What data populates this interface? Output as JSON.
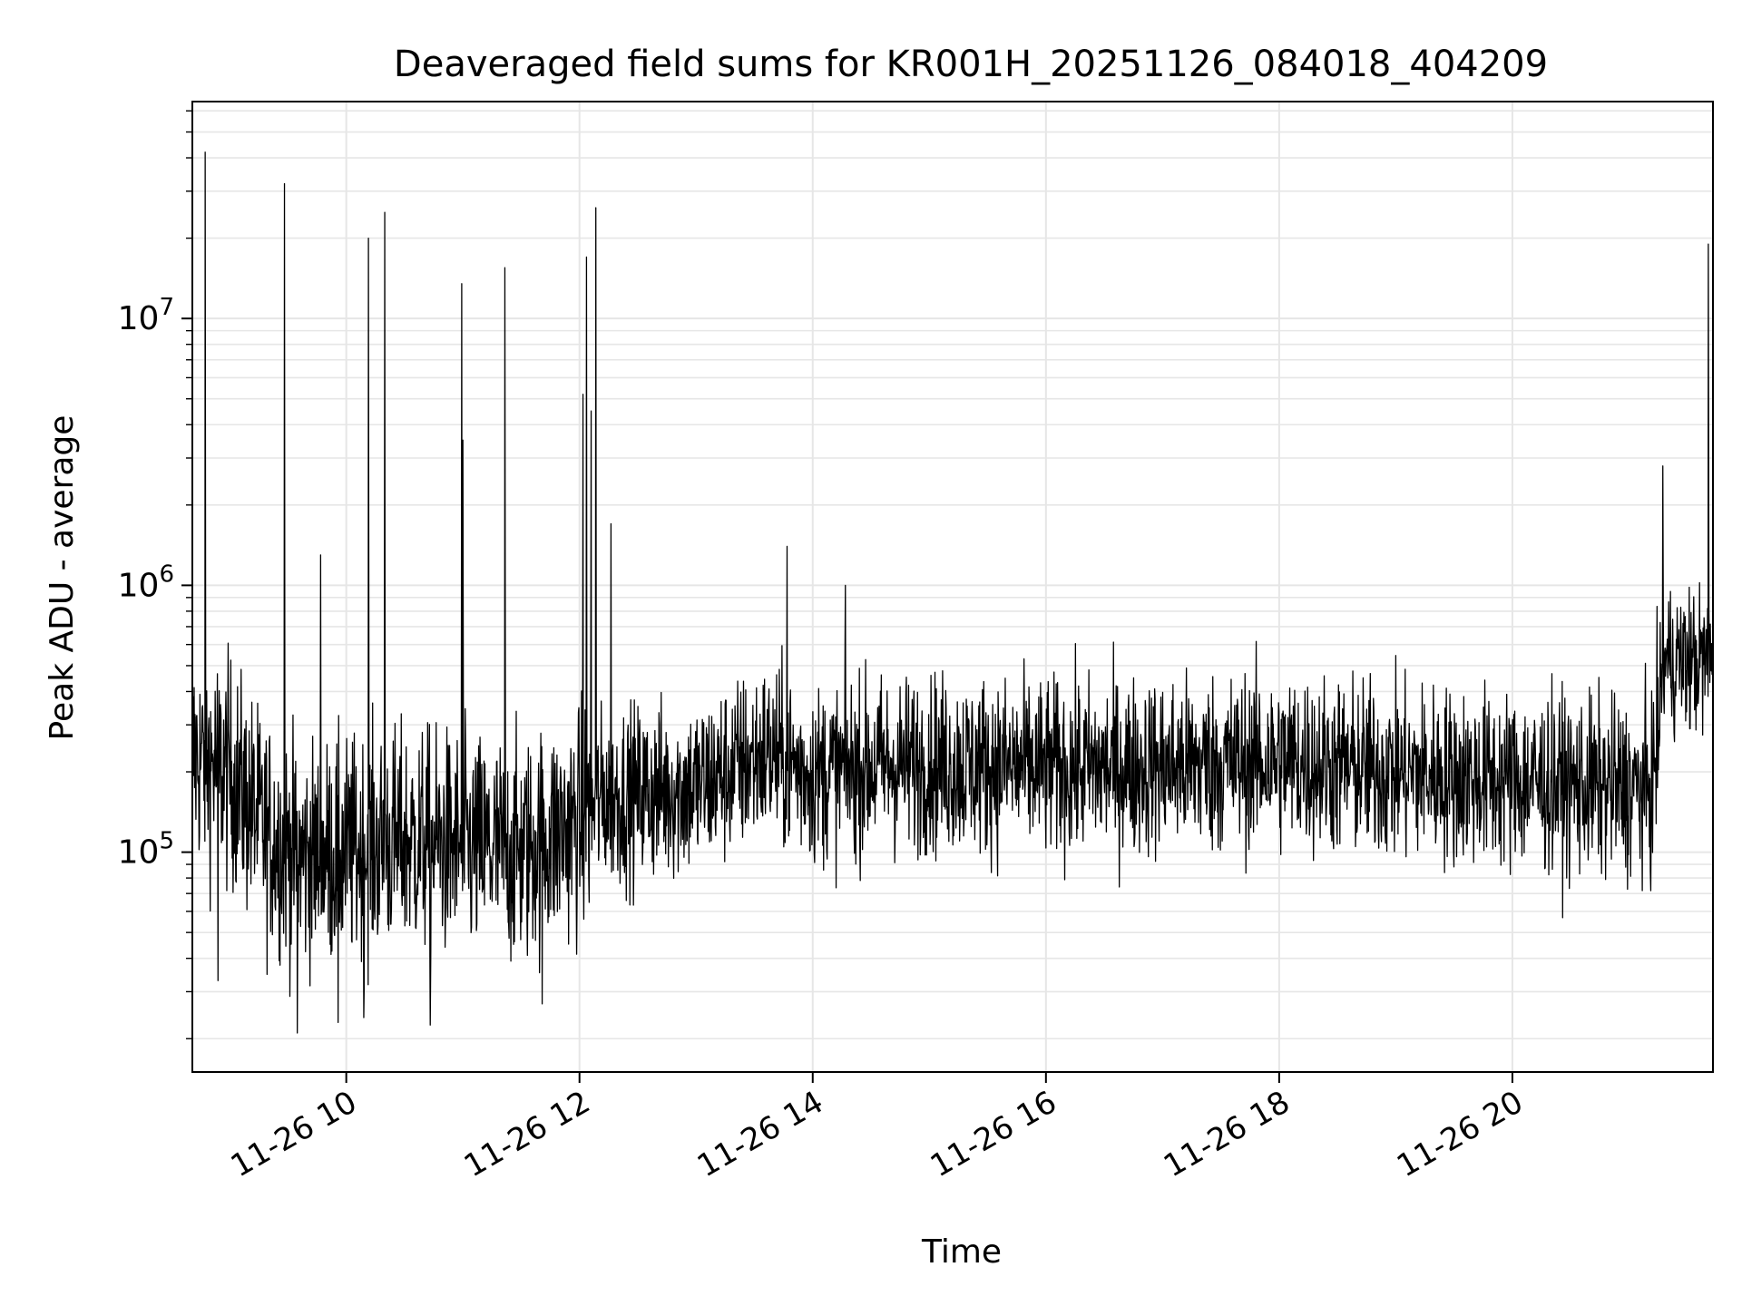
{
  "chart_data": {
    "type": "line",
    "title": "Deaveraged field sums for KR001H_20251126_084018_404209",
    "xlabel": "Time",
    "ylabel": "Peak ADU - average",
    "x_ticks": [
      "11-26 10",
      "11-26 12",
      "11-26 14",
      "11-26 16",
      "11-26 18",
      "11-26 20"
    ],
    "x_tick_hours": [
      10,
      12,
      14,
      16,
      18,
      20
    ],
    "xlim_hours": [
      8.68,
      21.72
    ],
    "yscale": "log",
    "ylim": [
      15000,
      65000000
    ],
    "y_ticks": [
      {
        "value": 100000,
        "base": "10",
        "exp": "5"
      },
      {
        "value": 1000000,
        "base": "10",
        "exp": "6"
      },
      {
        "value": 10000000,
        "base": "10",
        "exp": "7"
      }
    ],
    "grid": true,
    "line_color": "#000000",
    "grid_color": "#e6e6e6",
    "baseline_segments": [
      [
        8.68,
        230000
      ],
      [
        9.0,
        200000
      ],
      [
        9.3,
        120000
      ],
      [
        9.6,
        95000
      ],
      [
        10.0,
        100000
      ],
      [
        10.5,
        110000
      ],
      [
        11.0,
        105000
      ],
      [
        11.5,
        100000
      ],
      [
        12.0,
        130000
      ],
      [
        12.2,
        160000
      ],
      [
        13.0,
        175000
      ],
      [
        13.6,
        235000
      ],
      [
        14.0,
        195000
      ],
      [
        14.5,
        210000
      ],
      [
        15.0,
        215000
      ],
      [
        16.0,
        205000
      ],
      [
        17.0,
        210000
      ],
      [
        18.0,
        220000
      ],
      [
        19.0,
        200000
      ],
      [
        20.0,
        185000
      ],
      [
        21.2,
        170000
      ],
      [
        21.3,
        520000
      ],
      [
        21.72,
        520000
      ]
    ],
    "spikes": [
      {
        "x": 8.79,
        "y": 42000000
      },
      {
        "x": 9.47,
        "y": 32000000
      },
      {
        "x": 10.19,
        "y": 20000000
      },
      {
        "x": 10.33,
        "y": 25000000
      },
      {
        "x": 10.99,
        "y": 13500000
      },
      {
        "x": 11.0,
        "y": 3500000
      },
      {
        "x": 11.36,
        "y": 15500000
      },
      {
        "x": 12.03,
        "y": 5200000
      },
      {
        "x": 12.06,
        "y": 17000000
      },
      {
        "x": 12.1,
        "y": 4500000
      },
      {
        "x": 12.14,
        "y": 26000000
      },
      {
        "x": 12.27,
        "y": 1700000
      },
      {
        "x": 9.78,
        "y": 1300000
      },
      {
        "x": 13.78,
        "y": 1400000
      },
      {
        "x": 14.28,
        "y": 1000000
      },
      {
        "x": 21.29,
        "y": 2800000
      },
      {
        "x": 21.68,
        "y": 19000000
      }
    ],
    "dips": [
      {
        "x": 9.58,
        "y": 21000.0
      },
      {
        "x": 9.93,
        "y": 23000
      },
      {
        "x": 10.15,
        "y": 24000
      },
      {
        "x": 10.72,
        "y": 22500
      },
      {
        "x": 11.68,
        "y": 27000
      },
      {
        "x": 8.9,
        "y": 33000
      }
    ]
  }
}
